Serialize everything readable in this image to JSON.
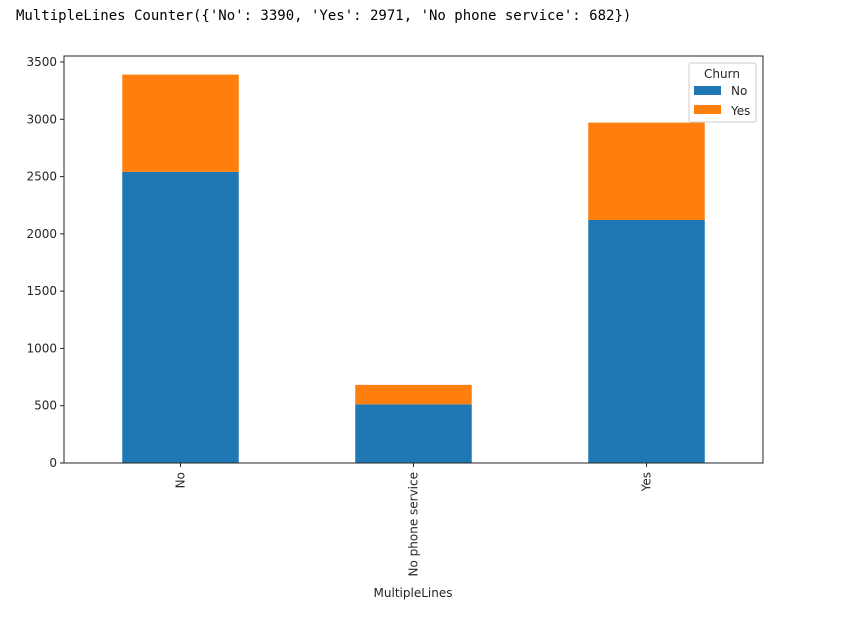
{
  "output": {
    "text": "MultipleLines Counter({'No': 3390, 'Yes': 2971, 'No phone service': 682})"
  },
  "chart_data": {
    "type": "bar",
    "stacked": true,
    "title": "",
    "xlabel": "MultipleLines",
    "ylabel": "",
    "categories": [
      "No",
      "No phone service",
      "Yes"
    ],
    "series": [
      {
        "name": "No",
        "color": "#1f77b4",
        "values": [
          2541,
          512,
          2121
        ]
      },
      {
        "name": "Yes",
        "color": "#ff7f0e",
        "values": [
          849,
          170,
          850
        ]
      }
    ],
    "totals": [
      3390,
      682,
      2971
    ],
    "ylim": [
      0,
      3550
    ],
    "yticks": [
      0,
      500,
      1000,
      1500,
      2000,
      2500,
      3000,
      3500
    ],
    "ytick_labels": [
      "0",
      "500",
      "1000",
      "1500",
      "2000",
      "2500",
      "3000",
      "3500"
    ],
    "xtick_rotation": 90,
    "grid": false,
    "legend": {
      "title": "Churn",
      "position": "upper right",
      "entries": [
        "No",
        "Yes"
      ]
    }
  }
}
